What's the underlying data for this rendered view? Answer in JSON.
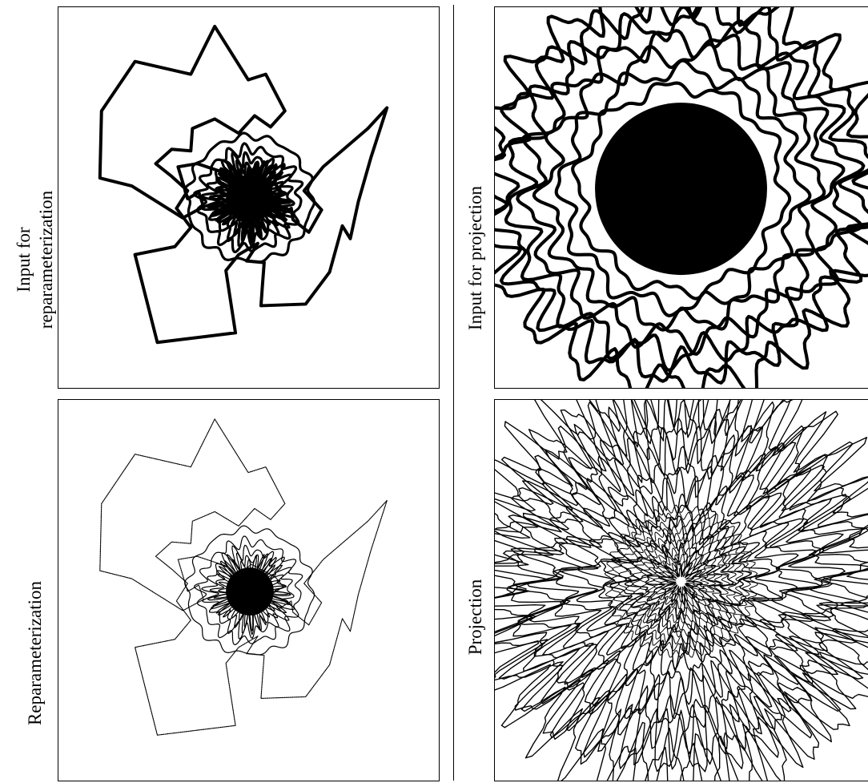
{
  "labels": {
    "top_left_line1": "Input for",
    "top_left_line2": "reparameterization",
    "bottom_left": "Reparameterization",
    "top_right": "Input for projection",
    "bottom_right": "Projection"
  },
  "colors": {
    "ink": "#000000",
    "background": "#ffffff"
  }
}
